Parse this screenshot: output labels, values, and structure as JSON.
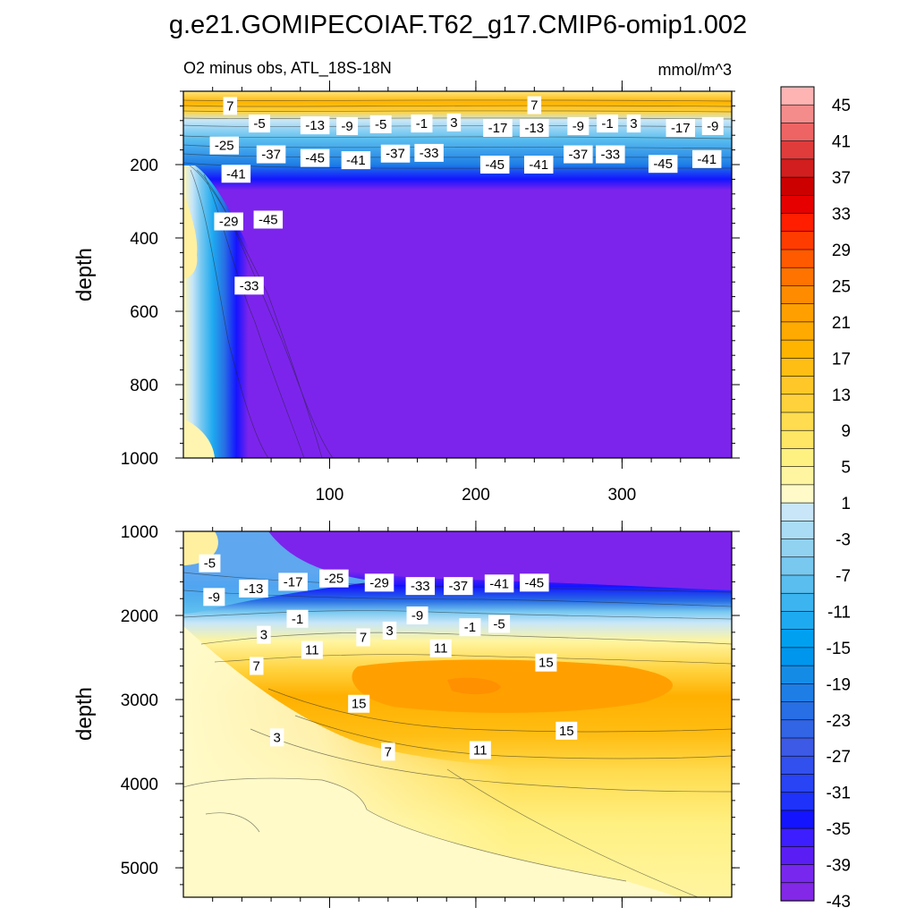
{
  "chart_data": {
    "type": "heatmap",
    "title": "g.e21.GOMIPECOIAF.T62_g17.CMIP6-omip1.002",
    "subtitle": "O2 minus obs, ATL_18S-18N",
    "units": "mmol/m^3",
    "ylabel": "depth",
    "x_range": [
      0,
      375
    ],
    "x_ticks": [
      "100",
      "200",
      "300"
    ],
    "panels": [
      {
        "name": "upper",
        "ylim": [
          0,
          1000
        ],
        "y_ticks": [
          "200",
          "400",
          "600",
          "800",
          "1000"
        ],
        "x_ticks": [
          "100",
          "200",
          "300"
        ],
        "contour_labels": [
          {
            "x": 32,
            "y": 40,
            "text": "7"
          },
          {
            "x": 240,
            "y": 38,
            "text": "7"
          },
          {
            "x": 52,
            "y": 88,
            "text": "-5"
          },
          {
            "x": 90,
            "y": 93,
            "text": "-13"
          },
          {
            "x": 112,
            "y": 95,
            "text": "-9"
          },
          {
            "x": 135,
            "y": 90,
            "text": "-5"
          },
          {
            "x": 163,
            "y": 88,
            "text": "-1"
          },
          {
            "x": 185,
            "y": 85,
            "text": "3"
          },
          {
            "x": 215,
            "y": 100,
            "text": "-17"
          },
          {
            "x": 240,
            "y": 100,
            "text": "-13"
          },
          {
            "x": 270,
            "y": 95,
            "text": "-9"
          },
          {
            "x": 290,
            "y": 88,
            "text": "-1"
          },
          {
            "x": 308,
            "y": 88,
            "text": "3"
          },
          {
            "x": 340,
            "y": 100,
            "text": "-17"
          },
          {
            "x": 362,
            "y": 95,
            "text": "-9"
          },
          {
            "x": 28,
            "y": 148,
            "text": "-25"
          },
          {
            "x": 60,
            "y": 172,
            "text": "-37"
          },
          {
            "x": 90,
            "y": 182,
            "text": "-45"
          },
          {
            "x": 118,
            "y": 188,
            "text": "-41"
          },
          {
            "x": 145,
            "y": 170,
            "text": "-37"
          },
          {
            "x": 168,
            "y": 168,
            "text": "-33"
          },
          {
            "x": 213,
            "y": 200,
            "text": "-45"
          },
          {
            "x": 243,
            "y": 200,
            "text": "-41"
          },
          {
            "x": 270,
            "y": 172,
            "text": "-37"
          },
          {
            "x": 292,
            "y": 172,
            "text": "-33"
          },
          {
            "x": 328,
            "y": 198,
            "text": "-45"
          },
          {
            "x": 358,
            "y": 185,
            "text": "-41"
          },
          {
            "x": 36,
            "y": 225,
            "text": "-41"
          },
          {
            "x": 31,
            "y": 355,
            "text": "-29"
          },
          {
            "x": 58,
            "y": 350,
            "text": "-45"
          },
          {
            "x": 45,
            "y": 530,
            "text": "-33"
          }
        ]
      },
      {
        "name": "lower",
        "ylim": [
          1000,
          5350
        ],
        "y_ticks": [
          "1000",
          "2000",
          "3000",
          "4000",
          "5000"
        ],
        "contour_labels": [
          {
            "x": 18,
            "y": 1380,
            "text": "-5"
          },
          {
            "x": 21,
            "y": 1780,
            "text": "-9"
          },
          {
            "x": 48,
            "y": 1680,
            "text": "-13"
          },
          {
            "x": 75,
            "y": 1600,
            "text": "-17"
          },
          {
            "x": 103,
            "y": 1560,
            "text": "-25"
          },
          {
            "x": 134,
            "y": 1610,
            "text": "-29"
          },
          {
            "x": 162,
            "y": 1650,
            "text": "-33"
          },
          {
            "x": 188,
            "y": 1650,
            "text": "-37"
          },
          {
            "x": 216,
            "y": 1620,
            "text": "-41"
          },
          {
            "x": 240,
            "y": 1610,
            "text": "-45"
          },
          {
            "x": 78,
            "y": 2040,
            "text": "-1"
          },
          {
            "x": 160,
            "y": 2000,
            "text": "-9"
          },
          {
            "x": 196,
            "y": 2140,
            "text": "-1"
          },
          {
            "x": 216,
            "y": 2100,
            "text": "-5"
          },
          {
            "x": 55,
            "y": 2230,
            "text": "3"
          },
          {
            "x": 123,
            "y": 2260,
            "text": "7"
          },
          {
            "x": 141,
            "y": 2180,
            "text": "3"
          },
          {
            "x": 88,
            "y": 2410,
            "text": "11"
          },
          {
            "x": 176,
            "y": 2390,
            "text": "11"
          },
          {
            "x": 50,
            "y": 2600,
            "text": "7"
          },
          {
            "x": 248,
            "y": 2560,
            "text": "15"
          },
          {
            "x": 120,
            "y": 3050,
            "text": "15"
          },
          {
            "x": 262,
            "y": 3370,
            "text": "15"
          },
          {
            "x": 64,
            "y": 3450,
            "text": "3"
          },
          {
            "x": 140,
            "y": 3620,
            "text": "7"
          },
          {
            "x": 203,
            "y": 3600,
            "text": "11"
          }
        ]
      }
    ],
    "colorbar": {
      "tick_labels": [
        "45",
        "41",
        "37",
        "33",
        "29",
        "25",
        "21",
        "17",
        "13",
        "9",
        "5",
        "1",
        "-3",
        "-7",
        "-11",
        "-15",
        "-19",
        "-23",
        "-27",
        "-31",
        "-35",
        "-39",
        "-43"
      ],
      "colors_top_to_bottom": [
        "#ffb4b4",
        "#f58c8c",
        "#ee6464",
        "#e03c3c",
        "#d21e1e",
        "#cd0000",
        "#e60000",
        "#ff1e00",
        "#ff3c00",
        "#ff5a00",
        "#ff7300",
        "#ff8c00",
        "#ffa000",
        "#ffaa00",
        "#ffb400",
        "#ffbe14",
        "#ffc828",
        "#ffd23c",
        "#ffdc50",
        "#ffe664",
        "#fff082",
        "#fff5a0",
        "#fffac8",
        "#c8e6f8",
        "#aadcf5",
        "#91d2f0",
        "#78c8f0",
        "#5abeef",
        "#3cb4f0",
        "#1eaaf0",
        "#00a0f0",
        "#0096ee",
        "#148ce6",
        "#1e7ee6",
        "#286ee4",
        "#3264e6",
        "#3c5ae6",
        "#3250ee",
        "#2844f5",
        "#1e32fa",
        "#1414ff",
        "#3c1eff",
        "#5a1ef5",
        "#7828ee",
        "#8228e6"
      ]
    }
  }
}
